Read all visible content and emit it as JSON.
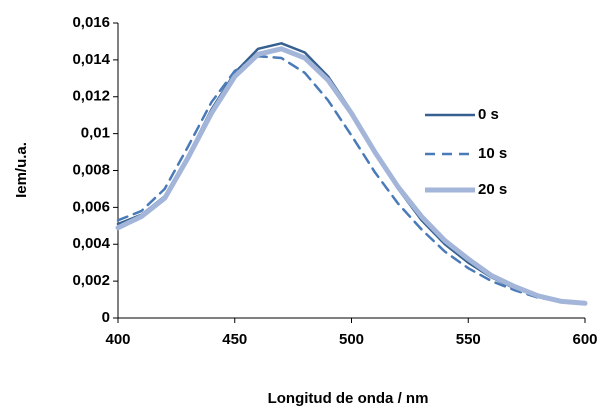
{
  "chart_data": {
    "type": "line",
    "xlabel": "Longitud de onda / nm",
    "ylabel": "Iem/u.a.",
    "x": [
      400,
      410,
      420,
      430,
      440,
      450,
      460,
      470,
      480,
      490,
      500,
      510,
      520,
      530,
      540,
      550,
      560,
      570,
      580,
      590,
      600
    ],
    "series": [
      {
        "name": "0 s",
        "color": "#35608f",
        "style": "solid",
        "width": 2.5,
        "values": [
          0.0051,
          0.0056,
          0.0066,
          0.0088,
          0.0113,
          0.0133,
          0.0146,
          0.0149,
          0.0144,
          0.0131,
          0.0112,
          0.009,
          0.007,
          0.0053,
          0.004,
          0.003,
          0.0022,
          0.0016,
          0.0012,
          0.0009,
          0.0008
        ]
      },
      {
        "name": "10 s",
        "color": "#4a7ab8",
        "style": "dashed",
        "width": 2.5,
        "values": [
          0.0053,
          0.0058,
          0.007,
          0.0093,
          0.0117,
          0.0134,
          0.0142,
          0.0141,
          0.0133,
          0.0118,
          0.0099,
          0.0079,
          0.0062,
          0.0048,
          0.0036,
          0.0027,
          0.002,
          0.0015,
          0.0011,
          0.0009,
          0.0008
        ]
      },
      {
        "name": "20 s",
        "color": "#a3b6d9",
        "style": "solid",
        "width": 5,
        "values": [
          0.0049,
          0.0055,
          0.0065,
          0.0087,
          0.0111,
          0.0131,
          0.0143,
          0.0146,
          0.0141,
          0.0129,
          0.0111,
          0.009,
          0.0071,
          0.0055,
          0.0042,
          0.0032,
          0.0023,
          0.0017,
          0.0012,
          0.0009,
          0.0008
        ]
      }
    ],
    "xlim": [
      400,
      600
    ],
    "xticks": [
      400,
      450,
      500,
      550,
      600
    ],
    "ylim": [
      0,
      0.016
    ],
    "yticks": [
      0,
      {
        "value": 0.002,
        "label": "0,002"
      },
      {
        "value": 0.004,
        "label": "0,004"
      },
      {
        "value": 0.006,
        "label": "0,006"
      },
      {
        "value": 0.008,
        "label": "0,008"
      },
      {
        "value": 0.01,
        "label": "0,01"
      },
      {
        "value": 0.012,
        "label": "0,012"
      },
      {
        "value": 0.014,
        "label": "0,014"
      },
      {
        "value": 0.016,
        "label": "0,016"
      }
    ],
    "legend": "right",
    "grid": false
  }
}
